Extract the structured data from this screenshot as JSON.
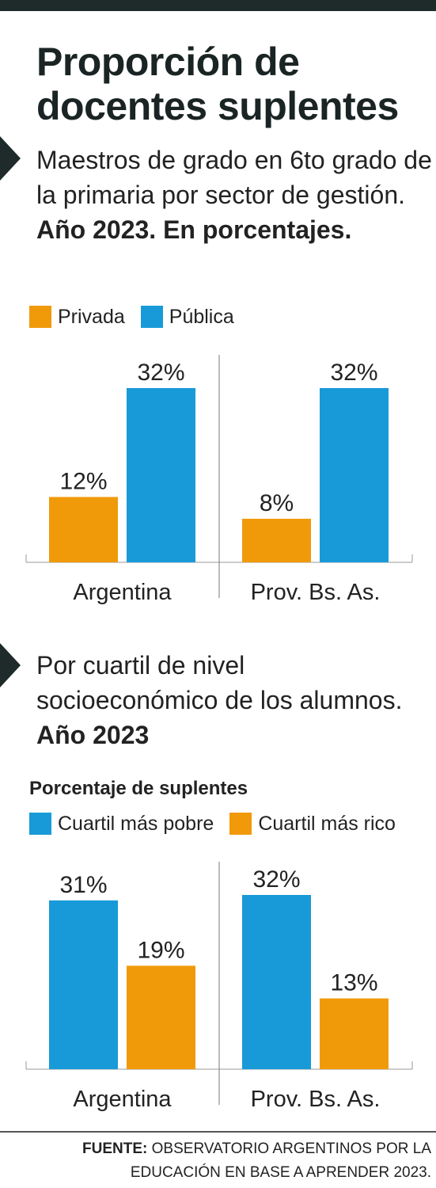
{
  "header": {
    "title": "Proporción de docentes suplentes"
  },
  "section1": {
    "subtitle_plain": "Maestros de grado en 6to grado de la primaria por sector de gestión.",
    "subtitle_bold": "Año 2023. En porcentajes."
  },
  "section2": {
    "subtitle_plain": "Por cuartil de nivel socioeconómico de los alumnos.",
    "subtitle_bold": "Año 2023",
    "unit_label": "Porcentaje de suplentes"
  },
  "source": {
    "label": "FUENTE:",
    "text": "OBSERVATORIO ARGENTINOS POR LA EDUCACIÓN EN BASE A APRENDER 2023."
  },
  "colors": {
    "orange": "#f09a0a",
    "blue": "#189ad8",
    "dark": "#1f2a2a"
  },
  "chart_data": [
    {
      "type": "bar",
      "categories": [
        "Argentina",
        "Prov. Bs. As."
      ],
      "series": [
        {
          "name": "Privada",
          "values": [
            12,
            8
          ],
          "labels": [
            "12%",
            "8%"
          ],
          "color": "#f09a0a"
        },
        {
          "name": "Pública",
          "values": [
            32,
            32
          ],
          "labels": [
            "32%",
            "32%"
          ],
          "color": "#189ad8"
        }
      ],
      "ylim": [
        0,
        32
      ],
      "legend": "top-left",
      "grid": false
    },
    {
      "type": "bar",
      "categories": [
        "Argentina",
        "Prov. Bs. As."
      ],
      "series": [
        {
          "name": "Cuartil más pobre",
          "values": [
            31,
            32
          ],
          "labels": [
            "31%",
            "32%"
          ],
          "color": "#189ad8"
        },
        {
          "name": "Cuartil más rico",
          "values": [
            19,
            13
          ],
          "labels": [
            "19%",
            "13%"
          ],
          "color": "#f09a0a"
        }
      ],
      "ylabel": "Porcentaje de suplentes",
      "ylim": [
        0,
        32
      ],
      "legend": "top-left",
      "grid": false
    }
  ]
}
